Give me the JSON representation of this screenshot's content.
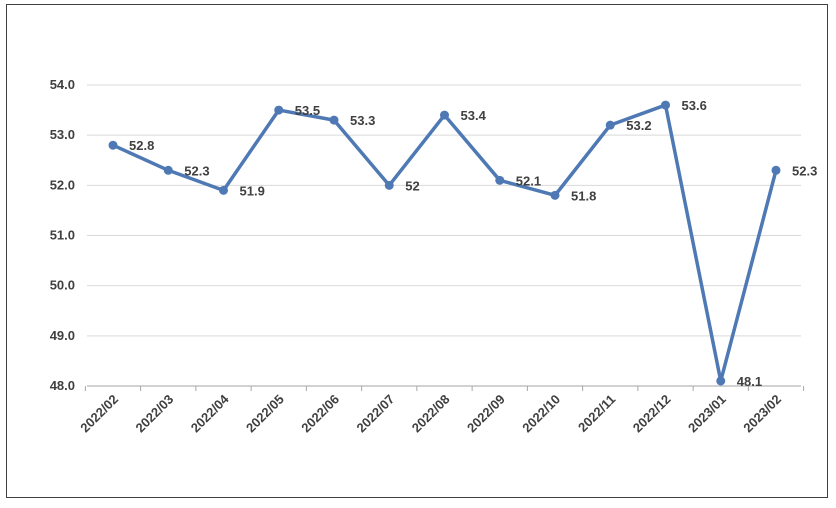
{
  "chart_data": {
    "type": "line",
    "title": "",
    "xlabel": "",
    "ylabel": "",
    "categories": [
      "2022/02",
      "2022/03",
      "2022/04",
      "2022/05",
      "2022/06",
      "2022/07",
      "2022/08",
      "2022/09",
      "2022/10",
      "2022/11",
      "2022/12",
      "2023/01",
      "2023/02"
    ],
    "series": [
      {
        "values": [
          52.8,
          52.3,
          51.9,
          53.5,
          53.3,
          52.0,
          53.4,
          52.1,
          51.8,
          53.2,
          53.6,
          48.1,
          52.3
        ],
        "data_labels": [
          "52.8",
          "52.3",
          "51.9",
          "53.5",
          "53.3",
          "52",
          "53.4",
          "52.1",
          "51.8",
          "53.2",
          "53.6",
          "48.1",
          "52.3"
        ]
      }
    ],
    "yticks": [
      "48.0",
      "49.0",
      "50.0",
      "51.0",
      "52.0",
      "53.0",
      "54.0"
    ],
    "ylim": [
      48,
      54
    ],
    "grid": true,
    "legend": "none",
    "colors": {
      "line": "#4f79b4",
      "marker": "#4f79b4",
      "grid": "#d9d9d9",
      "text": "#404040"
    }
  }
}
